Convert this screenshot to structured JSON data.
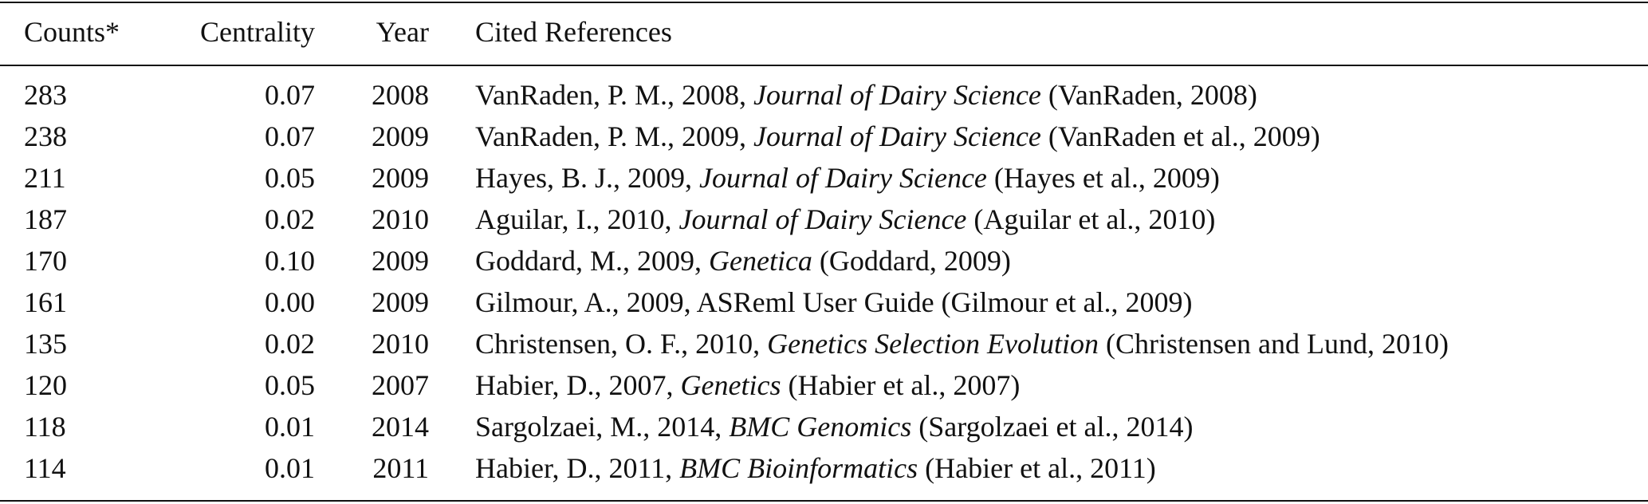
{
  "table": {
    "header": [
      "Counts*",
      "Centrality",
      "Year",
      "Cited References"
    ],
    "rows": [
      {
        "counts": "283",
        "centrality": "0.07",
        "year": "2008",
        "ref": {
          "text": "VanRaden, P. M., 2008,",
          "source": "Journal of Dairy Science",
          "italic": true,
          "cite": "(VanRaden, 2008)"
        }
      },
      {
        "counts": "238",
        "centrality": "0.07",
        "year": "2009",
        "ref": {
          "text": "VanRaden, P. M., 2009,",
          "source": "Journal of Dairy Science",
          "italic": true,
          "cite": "(VanRaden et al., 2009)"
        }
      },
      {
        "counts": "211",
        "centrality": "0.05",
        "year": "2009",
        "ref": {
          "text": "Hayes, B. J., 2009,",
          "source": "Journal of Dairy Science",
          "italic": true,
          "cite": "(Hayes et al., 2009)"
        }
      },
      {
        "counts": "187",
        "centrality": "0.02",
        "year": "2010",
        "ref": {
          "text": "Aguilar, I., 2010,",
          "source": "Journal of Dairy Science",
          "italic": true,
          "cite": "(Aguilar et al., 2010)"
        }
      },
      {
        "counts": "170",
        "centrality": "0.10",
        "year": "2009",
        "ref": {
          "text": "Goddard, M., 2009,",
          "source": "Genetica",
          "italic": true,
          "cite": "(Goddard, 2009)"
        }
      },
      {
        "counts": "161",
        "centrality": "0.00",
        "year": "2009",
        "ref": {
          "text": "Gilmour, A., 2009,",
          "source": "ASReml User Guide",
          "italic": false,
          "cite": "(Gilmour et al., 2009)"
        }
      },
      {
        "counts": "135",
        "centrality": "0.02",
        "year": "2010",
        "ref": {
          "text": "Christensen, O. F., 2010,",
          "source": "Genetics Selection Evolution",
          "italic": true,
          "cite": "(Christensen and Lund, 2010)"
        }
      },
      {
        "counts": "120",
        "centrality": "0.05",
        "year": "2007",
        "ref": {
          "text": "Habier, D., 2007,",
          "source": "Genetics",
          "italic": true,
          "cite": "(Habier et al., 2007)"
        }
      },
      {
        "counts": "118",
        "centrality": "0.01",
        "year": "2014",
        "ref": {
          "text": "Sargolzaei, M., 2014,",
          "source": "BMC Genomics",
          "italic": true,
          "cite": "(Sargolzaei et al., 2014)"
        }
      },
      {
        "counts": "114",
        "centrality": "0.01",
        "year": "2011",
        "ref": {
          "text": "Habier, D., 2011,",
          "source": "BMC Bioinformatics",
          "italic": true,
          "cite": "(Habier et al., 2011)"
        }
      }
    ]
  }
}
